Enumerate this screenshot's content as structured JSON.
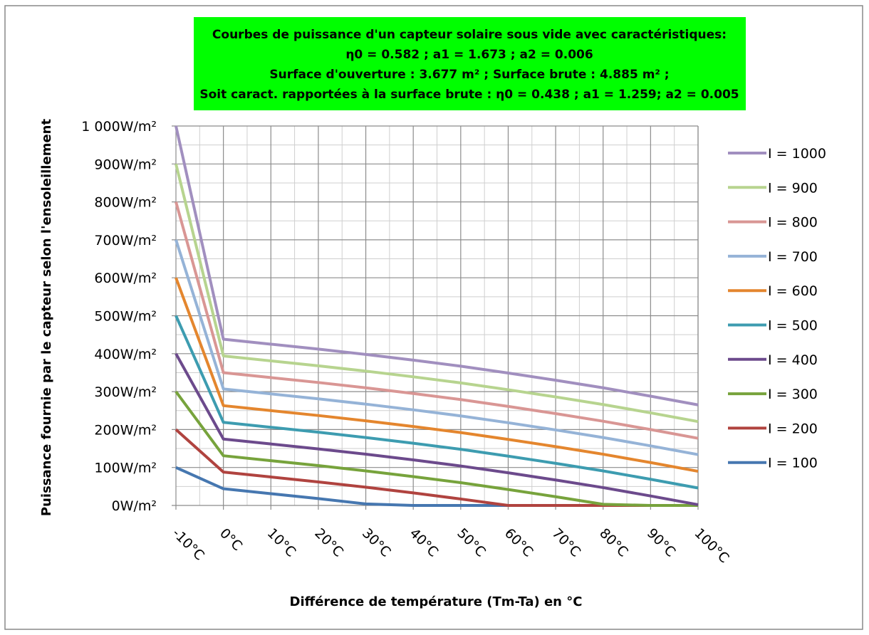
{
  "chart_data": {
    "type": "line",
    "title_lines": [
      "Courbes de puissance d'un capteur solaire sous vide avec caractéristiques:",
      "η0 = 0.582 ; a1 = 1.673 ; a2 = 0.006",
      "Surface d'ouverture : 3.677 m² ; Surface brute : 4.885 m² ;",
      "Soit caract. rapportées à la surface brute : η0 = 0.438 ; a1 = 1.259; a2 = 0.005"
    ],
    "xlabel": "Différence de température (Tm-Ta) en °C",
    "ylabel": "Puissance fournie par le capteur selon l'ensoleillement",
    "x": [
      -10,
      0,
      10,
      20,
      30,
      40,
      50,
      60,
      70,
      80,
      90,
      100
    ],
    "x_tick_labels": [
      "-10°C",
      "0°C",
      "10°C",
      "20°C",
      "30°C",
      "40°C",
      "50°C",
      "60°C",
      "70°C",
      "80°C",
      "90°C",
      "100°C"
    ],
    "y_tick_labels": [
      "0W/m²",
      "100W/m²",
      "200W/m²",
      "300W/m²",
      "400W/m²",
      "500W/m²",
      "600W/m²",
      "700W/m²",
      "800W/m²",
      "900W/m²",
      "1 000W/m²"
    ],
    "xlim": [
      -10,
      100
    ],
    "ylim": [
      0,
      1000
    ],
    "grid": true,
    "legend_position": "right",
    "series": [
      {
        "name": "I = 1000",
        "color": "#a18fbf",
        "values": [
          1000,
          438,
          425,
          412,
          398,
          383,
          367,
          349,
          330,
          310,
          288,
          265
        ]
      },
      {
        "name": "I = 900",
        "color": "#b7d48f",
        "values": [
          900,
          394,
          381,
          368,
          354,
          339,
          323,
          305,
          286,
          266,
          244,
          221
        ]
      },
      {
        "name": "I = 800",
        "color": "#d99694",
        "values": [
          800,
          350,
          337,
          324,
          310,
          295,
          279,
          261,
          242,
          222,
          200,
          177
        ]
      },
      {
        "name": "I = 700",
        "color": "#95b3d7",
        "values": [
          700,
          307,
          294,
          281,
          267,
          252,
          236,
          218,
          199,
          179,
          157,
          134
        ]
      },
      {
        "name": "I = 600",
        "color": "#e4862e",
        "values": [
          600,
          263,
          250,
          237,
          223,
          208,
          192,
          174,
          155,
          135,
          113,
          90
        ]
      },
      {
        "name": "I = 500",
        "color": "#3d9cb0",
        "values": [
          500,
          219,
          206,
          193,
          179,
          164,
          148,
          130,
          111,
          91,
          69,
          46
        ]
      },
      {
        "name": "I = 400",
        "color": "#6c4a8c",
        "values": [
          400,
          175,
          162,
          149,
          135,
          120,
          104,
          86,
          67,
          47,
          25,
          2
        ]
      },
      {
        "name": "I = 300",
        "color": "#77a33c",
        "values": [
          300,
          131,
          118,
          105,
          91,
          76,
          60,
          42,
          23,
          3,
          0,
          0
        ]
      },
      {
        "name": "I = 200",
        "color": "#b0433f",
        "values": [
          200,
          88,
          75,
          62,
          48,
          33,
          17,
          0,
          0,
          0,
          0,
          0
        ]
      },
      {
        "name": "I = 100",
        "color": "#4677b0",
        "values": [
          100,
          44,
          31,
          18,
          4,
          0,
          0,
          0,
          0,
          0,
          0,
          0
        ]
      }
    ],
    "title_box_color": "#00ff00",
    "frame_color": "#888888",
    "grid_color": "#8c8c8c",
    "minor_grid_color": "#cfcfcf"
  }
}
